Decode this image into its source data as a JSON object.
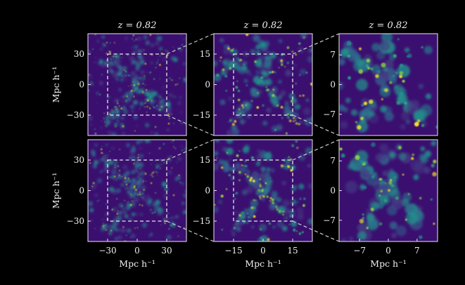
{
  "chart_data": {
    "type": "heatmap",
    "panel_title": "z = 0.82",
    "colormap": [
      "#3b0f70",
      "#443a83",
      "#31688e",
      "#21918c",
      "#35b779",
      "#90d743",
      "#fde725"
    ],
    "background": "#000000",
    "columns": [
      {
        "extent_mpc_h": [
          -50,
          50
        ],
        "ticks": [
          -30,
          0,
          30
        ],
        "tick_labels": [
          "−30",
          "0",
          "30"
        ],
        "zoom_box": [
          -30,
          30
        ]
      },
      {
        "extent_mpc_h": [
          -25,
          25
        ],
        "ticks": [
          -15,
          0,
          15
        ],
        "tick_labels": [
          "−15",
          "0",
          "15"
        ],
        "zoom_box": [
          -15,
          15
        ]
      },
      {
        "extent_mpc_h": [
          -12,
          12
        ],
        "ticks": [
          -7,
          0,
          7
        ],
        "tick_labels": [
          "−7",
          "0",
          "7"
        ],
        "zoom_box": null
      }
    ],
    "rows": 2,
    "xlabel": "Mpc h⁻¹",
    "ylabel": "Mpc h⁻¹"
  }
}
